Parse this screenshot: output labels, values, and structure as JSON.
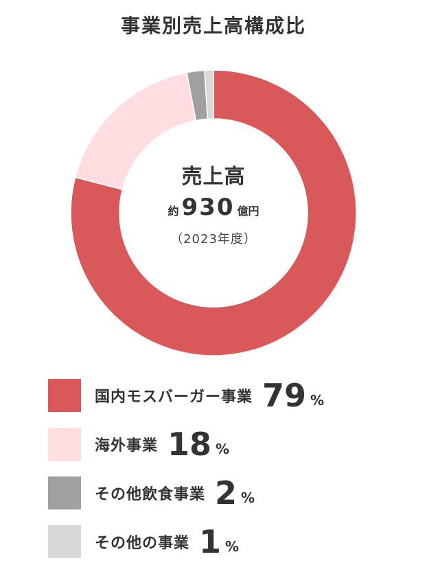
{
  "chart_data": {
    "type": "pie",
    "title": "事業別売上高構成比",
    "center": {
      "label": "売上高",
      "prefix": "約",
      "value": "930",
      "unit": "億円",
      "year": "（2023年度）"
    },
    "series": [
      {
        "name": "国内モスバーガー事業",
        "value": 79,
        "color": "#d9585a"
      },
      {
        "name": "海外事業",
        "value": 18,
        "color": "#ffdde0"
      },
      {
        "name": "その他飲食事業",
        "value": 2,
        "color": "#a0a0a0"
      },
      {
        "name": "その他の事業",
        "value": 1,
        "color": "#d8d8d8"
      }
    ],
    "value_unit": "%"
  }
}
